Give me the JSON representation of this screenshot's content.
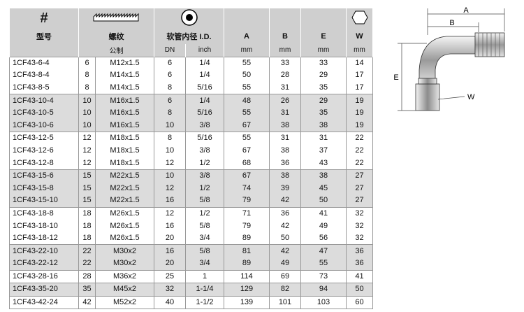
{
  "header": {
    "model_icon": "#",
    "model": "型号",
    "thread": "螺纹",
    "thread_unit": "公制",
    "hose_id": "软管内径 I.D.",
    "dn": "DN",
    "inch": "inch",
    "a": "A",
    "b": "B",
    "e": "E",
    "w": "W",
    "mm_a": "mm",
    "mm_b": "mm",
    "mm_e": "mm",
    "mm_w": "mm"
  },
  "table": {
    "rows": [
      [
        "1CF43-6-4",
        6,
        "M12x1.5",
        6,
        "1/4",
        55,
        33,
        33,
        14
      ],
      [
        "1CF43-8-4",
        8,
        "M14x1.5",
        6,
        "1/4",
        50,
        28,
        29,
        17
      ],
      [
        "1CF43-8-5",
        8,
        "M14x1.5",
        8,
        "5/16",
        55,
        31,
        35,
        17
      ],
      [
        "1CF43-10-4",
        10,
        "M16x1.5",
        6,
        "1/4",
        48,
        26,
        29,
        19
      ],
      [
        "1CF43-10-5",
        10,
        "M16x1.5",
        8,
        "5/16",
        55,
        31,
        35,
        19
      ],
      [
        "1CF43-10-6",
        10,
        "M16x1.5",
        10,
        "3/8",
        67,
        38,
        38,
        19
      ],
      [
        "1CF43-12-5",
        12,
        "M18x1.5",
        8,
        "5/16",
        55,
        31,
        31,
        22
      ],
      [
        "1CF43-12-6",
        12,
        "M18x1.5",
        10,
        "3/8",
        67,
        38,
        37,
        22
      ],
      [
        "1CF43-12-8",
        12,
        "M18x1.5",
        12,
        "1/2",
        68,
        36,
        43,
        22
      ],
      [
        "1CF43-15-6",
        15,
        "M22x1.5",
        10,
        "3/8",
        67,
        38,
        38,
        27
      ],
      [
        "1CF43-15-8",
        15,
        "M22x1.5",
        12,
        "1/2",
        74,
        39,
        45,
        27
      ],
      [
        "1CF43-15-10",
        15,
        "M22x1.5",
        16,
        "5/8",
        79,
        42,
        50,
        27
      ],
      [
        "1CF43-18-8",
        18,
        "M26x1.5",
        12,
        "1/2",
        71,
        36,
        41,
        32
      ],
      [
        "1CF43-18-10",
        18,
        "M26x1.5",
        16,
        "5/8",
        79,
        42,
        49,
        32
      ],
      [
        "1CF43-18-12",
        18,
        "M26x1.5",
        20,
        "3/4",
        89,
        50,
        56,
        32
      ],
      [
        "1CF43-22-10",
        22,
        "M30x2",
        16,
        "5/8",
        81,
        42,
        47,
        36
      ],
      [
        "1CF43-22-12",
        22,
        "M30x2",
        20,
        "3/4",
        89,
        49,
        55,
        36
      ],
      [
        "1CF43-28-16",
        28,
        "M36x2",
        25,
        "1",
        114,
        69,
        73,
        41
      ],
      [
        "1CF43-35-20",
        35,
        "M45x2",
        32,
        "1-1/4",
        129,
        82,
        94,
        50
      ],
      [
        "1CF43-42-24",
        42,
        "M52x2",
        40,
        "1-1/2",
        139,
        101,
        103,
        60
      ]
    ]
  },
  "diagram": {
    "a": "A",
    "b": "B",
    "e": "E",
    "w": "W"
  }
}
